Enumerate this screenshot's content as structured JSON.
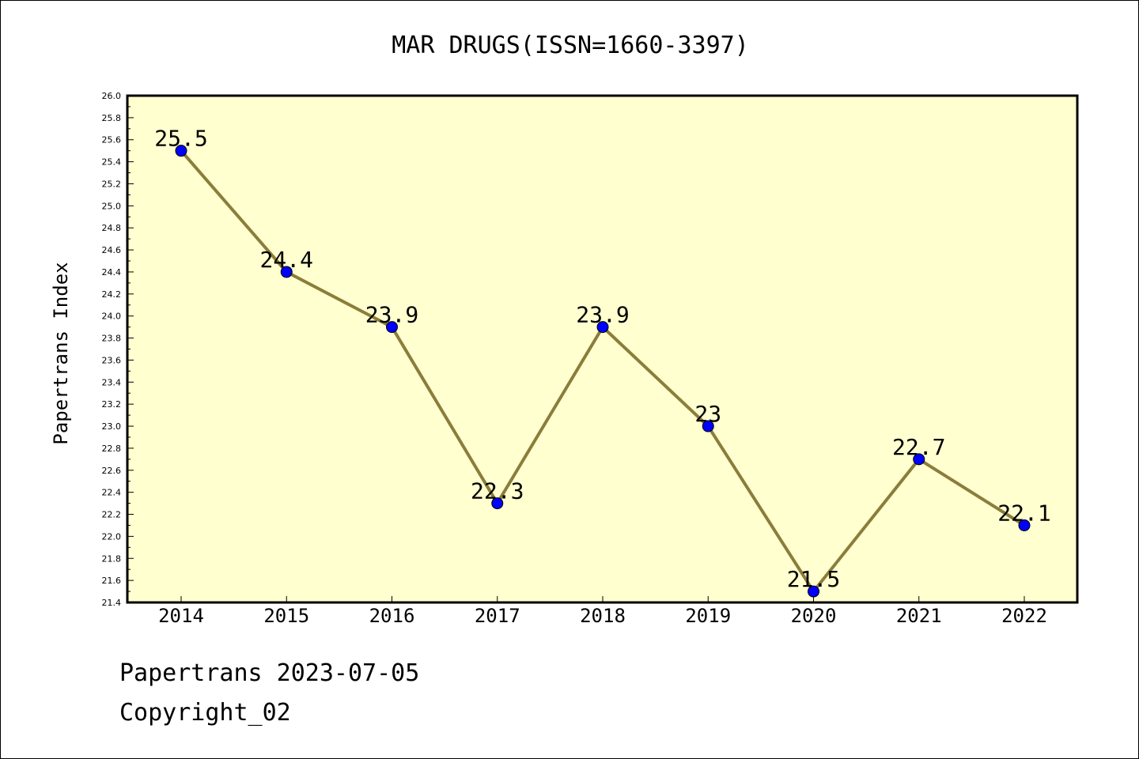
{
  "chart_data": {
    "type": "line",
    "title": "MAR DRUGS(ISSN=1660-3397)",
    "xlabel": "",
    "ylabel": "Papertrans Index",
    "categories": [
      "2014",
      "2015",
      "2016",
      "2017",
      "2018",
      "2019",
      "2020",
      "2021",
      "2022"
    ],
    "values": [
      25.5,
      24.4,
      23.9,
      22.3,
      23.9,
      23.0,
      21.5,
      22.7,
      22.1
    ],
    "data_labels": [
      "25.5",
      "24.4",
      "23.9",
      "22.3",
      "23.9",
      "23",
      "21.5",
      "22.7",
      "22.1"
    ],
    "ylim": [
      21.4,
      26.0
    ],
    "ytick_step": 0.2,
    "grid": false,
    "colors": {
      "line": "#8b7d3a",
      "marker": "#0000ff",
      "plot_background": "#ffffd0"
    }
  },
  "footer": {
    "date_line": "Papertrans 2023-07-05",
    "copyright_line": "Copyright_02"
  }
}
